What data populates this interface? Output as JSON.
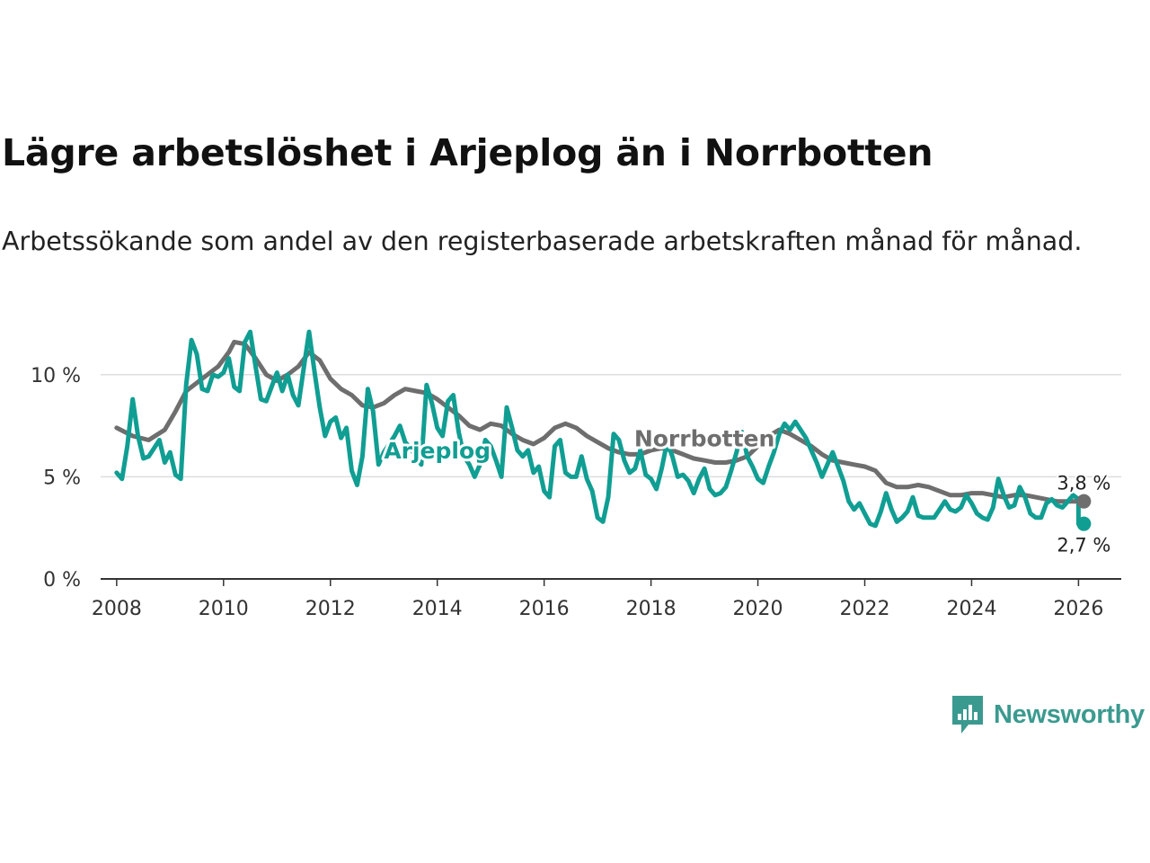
{
  "title": "Lägre arbetslöshet i Arjeplog än i Norrbotten",
  "subtitle": "Arbetssökande som andel av den registerbaserade arbetskraften månad för månad.",
  "brand": {
    "name": "Newsworthy",
    "icon": "newsworthy-logo-icon",
    "color": "#3b9a8f"
  },
  "chart_data": {
    "type": "line",
    "title": "Lägre arbetslöshet i Arjeplog än i Norrbotten",
    "subtitle": "Arbetssökande som andel av den registerbaserade arbetskraften månad för månad.",
    "xlabel": "",
    "ylabel": "",
    "xlim": [
      2007.7,
      2026.8
    ],
    "ylim": [
      0,
      12.5
    ],
    "x_ticks": [
      2008,
      2010,
      2012,
      2014,
      2016,
      2018,
      2020,
      2022,
      2024,
      2026
    ],
    "x_tick_labels": [
      "2008",
      "2010",
      "2012",
      "2014",
      "2016",
      "2018",
      "2020",
      "2022",
      "2024",
      "2026"
    ],
    "y_ticks": [
      0,
      5,
      10
    ],
    "y_tick_labels": [
      "0 %",
      "5 %",
      "10 %"
    ],
    "grid": true,
    "series": [
      {
        "name": "Norrbotten",
        "color": "#6e6e6e",
        "end_label": "3,8 %",
        "points": [
          [
            2008.0,
            7.4
          ],
          [
            2008.3,
            7.0
          ],
          [
            2008.6,
            6.8
          ],
          [
            2008.9,
            7.3
          ],
          [
            2009.1,
            8.2
          ],
          [
            2009.3,
            9.2
          ],
          [
            2009.6,
            9.8
          ],
          [
            2009.9,
            10.4
          ],
          [
            2010.1,
            11.1
          ],
          [
            2010.2,
            11.6
          ],
          [
            2010.4,
            11.5
          ],
          [
            2010.6,
            10.8
          ],
          [
            2010.8,
            10.0
          ],
          [
            2011.0,
            9.7
          ],
          [
            2011.2,
            10.0
          ],
          [
            2011.4,
            10.4
          ],
          [
            2011.6,
            11.1
          ],
          [
            2011.8,
            10.7
          ],
          [
            2012.0,
            9.8
          ],
          [
            2012.2,
            9.3
          ],
          [
            2012.4,
            9.0
          ],
          [
            2012.6,
            8.5
          ],
          [
            2012.8,
            8.4
          ],
          [
            2013.0,
            8.6
          ],
          [
            2013.2,
            9.0
          ],
          [
            2013.4,
            9.3
          ],
          [
            2013.6,
            9.2
          ],
          [
            2013.8,
            9.1
          ],
          [
            2014.0,
            8.8
          ],
          [
            2014.2,
            8.4
          ],
          [
            2014.4,
            8.0
          ],
          [
            2014.6,
            7.5
          ],
          [
            2014.8,
            7.3
          ],
          [
            2015.0,
            7.6
          ],
          [
            2015.2,
            7.5
          ],
          [
            2015.4,
            7.1
          ],
          [
            2015.6,
            6.8
          ],
          [
            2015.8,
            6.6
          ],
          [
            2016.0,
            6.9
          ],
          [
            2016.2,
            7.4
          ],
          [
            2016.4,
            7.6
          ],
          [
            2016.6,
            7.4
          ],
          [
            2016.8,
            7.0
          ],
          [
            2017.0,
            6.7
          ],
          [
            2017.2,
            6.4
          ],
          [
            2017.4,
            6.2
          ],
          [
            2017.6,
            6.1
          ],
          [
            2017.8,
            6.1
          ],
          [
            2018.0,
            6.3
          ],
          [
            2018.2,
            6.4
          ],
          [
            2018.4,
            6.3
          ],
          [
            2018.6,
            6.1
          ],
          [
            2018.8,
            5.9
          ],
          [
            2019.0,
            5.8
          ],
          [
            2019.2,
            5.7
          ],
          [
            2019.4,
            5.7
          ],
          [
            2019.6,
            5.8
          ],
          [
            2019.8,
            6.0
          ],
          [
            2020.0,
            6.5
          ],
          [
            2020.2,
            7.0
          ],
          [
            2020.4,
            7.3
          ],
          [
            2020.6,
            7.1
          ],
          [
            2020.8,
            6.8
          ],
          [
            2021.0,
            6.5
          ],
          [
            2021.2,
            6.1
          ],
          [
            2021.4,
            5.8
          ],
          [
            2021.6,
            5.7
          ],
          [
            2021.8,
            5.6
          ],
          [
            2022.0,
            5.5
          ],
          [
            2022.2,
            5.3
          ],
          [
            2022.4,
            4.7
          ],
          [
            2022.6,
            4.5
          ],
          [
            2022.8,
            4.5
          ],
          [
            2023.0,
            4.6
          ],
          [
            2023.2,
            4.5
          ],
          [
            2023.4,
            4.3
          ],
          [
            2023.6,
            4.1
          ],
          [
            2023.8,
            4.1
          ],
          [
            2024.0,
            4.2
          ],
          [
            2024.2,
            4.2
          ],
          [
            2024.4,
            4.1
          ],
          [
            2024.6,
            4.0
          ],
          [
            2024.8,
            4.1
          ],
          [
            2025.0,
            4.1
          ],
          [
            2025.2,
            4.0
          ],
          [
            2025.4,
            3.9
          ],
          [
            2025.6,
            3.8
          ],
          [
            2025.8,
            3.8
          ],
          [
            2026.1,
            3.8
          ]
        ]
      },
      {
        "name": "Arjeplog",
        "color": "#109e93",
        "end_label": "2,7 %",
        "points": [
          [
            2008.0,
            5.2
          ],
          [
            2008.1,
            4.9
          ],
          [
            2008.2,
            6.5
          ],
          [
            2008.3,
            8.8
          ],
          [
            2008.4,
            7.0
          ],
          [
            2008.5,
            5.9
          ],
          [
            2008.6,
            6.0
          ],
          [
            2008.8,
            6.8
          ],
          [
            2008.9,
            5.7
          ],
          [
            2009.0,
            6.2
          ],
          [
            2009.1,
            5.1
          ],
          [
            2009.2,
            4.9
          ],
          [
            2009.3,
            9.5
          ],
          [
            2009.4,
            11.7
          ],
          [
            2009.5,
            11.0
          ],
          [
            2009.6,
            9.3
          ],
          [
            2009.7,
            9.2
          ],
          [
            2009.8,
            10.0
          ],
          [
            2009.9,
            9.9
          ],
          [
            2010.0,
            10.1
          ],
          [
            2010.1,
            10.8
          ],
          [
            2010.2,
            9.4
          ],
          [
            2010.3,
            9.2
          ],
          [
            2010.4,
            11.6
          ],
          [
            2010.5,
            12.1
          ],
          [
            2010.6,
            10.4
          ],
          [
            2010.7,
            8.8
          ],
          [
            2010.8,
            8.7
          ],
          [
            2010.9,
            9.4
          ],
          [
            2011.0,
            10.1
          ],
          [
            2011.1,
            9.2
          ],
          [
            2011.2,
            10.0
          ],
          [
            2011.3,
            9.0
          ],
          [
            2011.4,
            8.5
          ],
          [
            2011.5,
            10.3
          ],
          [
            2011.6,
            12.1
          ],
          [
            2011.7,
            10.2
          ],
          [
            2011.8,
            8.4
          ],
          [
            2011.9,
            7.0
          ],
          [
            2012.0,
            7.7
          ],
          [
            2012.1,
            7.9
          ],
          [
            2012.2,
            6.9
          ],
          [
            2012.3,
            7.4
          ],
          [
            2012.4,
            5.3
          ],
          [
            2012.5,
            4.6
          ],
          [
            2012.6,
            6.0
          ],
          [
            2012.7,
            9.3
          ],
          [
            2012.8,
            8.2
          ],
          [
            2012.9,
            5.6
          ],
          [
            2013.0,
            6.2
          ],
          [
            2013.2,
            7.0
          ],
          [
            2013.3,
            7.5
          ],
          [
            2013.4,
            6.7
          ],
          [
            2013.5,
            6.4
          ],
          [
            2013.6,
            6.0
          ],
          [
            2013.7,
            5.6
          ],
          [
            2013.8,
            9.5
          ],
          [
            2013.9,
            8.6
          ],
          [
            2014.0,
            7.4
          ],
          [
            2014.1,
            7.0
          ],
          [
            2014.2,
            8.7
          ],
          [
            2014.3,
            9.0
          ],
          [
            2014.4,
            7.2
          ],
          [
            2014.5,
            6.0
          ],
          [
            2014.6,
            5.6
          ],
          [
            2014.7,
            5.0
          ],
          [
            2014.8,
            5.6
          ],
          [
            2014.9,
            6.8
          ],
          [
            2015.0,
            6.5
          ],
          [
            2015.1,
            5.8
          ],
          [
            2015.2,
            5.0
          ],
          [
            2015.3,
            8.4
          ],
          [
            2015.4,
            7.4
          ],
          [
            2015.5,
            6.3
          ],
          [
            2015.6,
            6.0
          ],
          [
            2015.7,
            6.3
          ],
          [
            2015.8,
            5.2
          ],
          [
            2015.9,
            5.5
          ],
          [
            2016.0,
            4.3
          ],
          [
            2016.1,
            4.0
          ],
          [
            2016.2,
            6.5
          ],
          [
            2016.3,
            6.8
          ],
          [
            2016.4,
            5.2
          ],
          [
            2016.5,
            5.0
          ],
          [
            2016.6,
            5.0
          ],
          [
            2016.7,
            6.0
          ],
          [
            2016.8,
            4.9
          ],
          [
            2016.9,
            4.3
          ],
          [
            2017.0,
            3.0
          ],
          [
            2017.1,
            2.8
          ],
          [
            2017.2,
            4.0
          ],
          [
            2017.3,
            7.1
          ],
          [
            2017.4,
            6.8
          ],
          [
            2017.5,
            5.8
          ],
          [
            2017.6,
            5.2
          ],
          [
            2017.7,
            5.4
          ],
          [
            2017.8,
            6.3
          ],
          [
            2017.9,
            5.1
          ],
          [
            2018.0,
            4.9
          ],
          [
            2018.1,
            4.4
          ],
          [
            2018.2,
            5.4
          ],
          [
            2018.3,
            6.7
          ],
          [
            2018.4,
            6.0
          ],
          [
            2018.5,
            5.0
          ],
          [
            2018.6,
            5.1
          ],
          [
            2018.7,
            4.8
          ],
          [
            2018.8,
            4.2
          ],
          [
            2018.9,
            4.9
          ],
          [
            2019.0,
            5.4
          ],
          [
            2019.1,
            4.4
          ],
          [
            2019.2,
            4.1
          ],
          [
            2019.3,
            4.2
          ],
          [
            2019.4,
            4.5
          ],
          [
            2019.5,
            5.3
          ],
          [
            2019.6,
            6.2
          ],
          [
            2019.7,
            7.2
          ],
          [
            2019.8,
            6.0
          ],
          [
            2019.9,
            5.5
          ],
          [
            2020.0,
            4.9
          ],
          [
            2020.1,
            4.7
          ],
          [
            2020.2,
            5.5
          ],
          [
            2020.3,
            6.2
          ],
          [
            2020.4,
            7.1
          ],
          [
            2020.5,
            7.6
          ],
          [
            2020.6,
            7.3
          ],
          [
            2020.7,
            7.7
          ],
          [
            2020.8,
            7.3
          ],
          [
            2020.9,
            6.9
          ],
          [
            2021.0,
            6.3
          ],
          [
            2021.1,
            5.7
          ],
          [
            2021.2,
            5.0
          ],
          [
            2021.3,
            5.6
          ],
          [
            2021.4,
            6.2
          ],
          [
            2021.5,
            5.5
          ],
          [
            2021.6,
            4.8
          ],
          [
            2021.7,
            3.8
          ],
          [
            2021.8,
            3.4
          ],
          [
            2021.9,
            3.7
          ],
          [
            2022.0,
            3.2
          ],
          [
            2022.1,
            2.7
          ],
          [
            2022.2,
            2.6
          ],
          [
            2022.3,
            3.3
          ],
          [
            2022.4,
            4.2
          ],
          [
            2022.5,
            3.4
          ],
          [
            2022.6,
            2.8
          ],
          [
            2022.7,
            3.0
          ],
          [
            2022.8,
            3.3
          ],
          [
            2022.9,
            4.0
          ],
          [
            2023.0,
            3.1
          ],
          [
            2023.1,
            3.0
          ],
          [
            2023.2,
            3.0
          ],
          [
            2023.3,
            3.0
          ],
          [
            2023.4,
            3.4
          ],
          [
            2023.5,
            3.8
          ],
          [
            2023.6,
            3.4
          ],
          [
            2023.7,
            3.3
          ],
          [
            2023.8,
            3.5
          ],
          [
            2023.9,
            4.1
          ],
          [
            2024.0,
            3.7
          ],
          [
            2024.1,
            3.2
          ],
          [
            2024.2,
            3.0
          ],
          [
            2024.3,
            2.9
          ],
          [
            2024.4,
            3.5
          ],
          [
            2024.5,
            4.9
          ],
          [
            2024.6,
            4.1
          ],
          [
            2024.7,
            3.5
          ],
          [
            2024.8,
            3.6
          ],
          [
            2024.9,
            4.5
          ],
          [
            2025.0,
            4.0
          ],
          [
            2025.1,
            3.2
          ],
          [
            2025.2,
            3.0
          ],
          [
            2025.3,
            3.0
          ],
          [
            2025.4,
            3.7
          ],
          [
            2025.5,
            3.9
          ],
          [
            2025.6,
            3.6
          ],
          [
            2025.7,
            3.5
          ],
          [
            2025.8,
            3.8
          ],
          [
            2025.9,
            4.1
          ],
          [
            2026.0,
            3.9
          ],
          [
            2026.0,
            2.7
          ],
          [
            2026.1,
            2.7
          ]
        ]
      }
    ],
    "annotations": [
      {
        "text": "Arjeplog",
        "series": "Arjeplog",
        "x": 2014.0,
        "y": 5.9
      },
      {
        "text": "Norrbotten",
        "series": "Norrbotten",
        "x": 2019.0,
        "y": 6.5
      }
    ]
  }
}
